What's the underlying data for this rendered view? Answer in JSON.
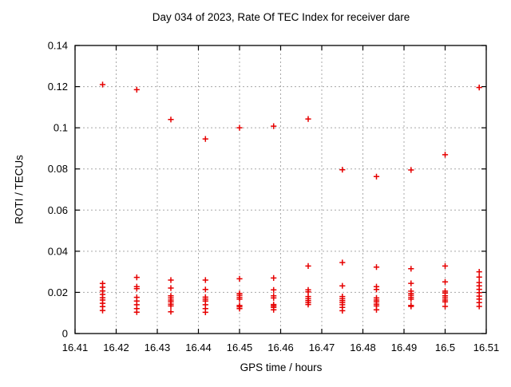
{
  "chart_data": {
    "type": "scatter",
    "title": "Day 034 of 2023, Rate Of TEC Index for receiver dare",
    "xlabel": "GPS time / hours",
    "ylabel": "ROTI / TECUs",
    "xlim": [
      16.41,
      16.51
    ],
    "ylim": [
      0,
      0.14
    ],
    "x_ticks": [
      "16.41",
      "16.42",
      "16.43",
      "16.44",
      "16.45",
      "16.46",
      "16.47",
      "16.48",
      "16.49",
      "16.5",
      "16.51"
    ],
    "y_ticks": [
      "0",
      "0.02",
      "0.04",
      "0.06",
      "0.08",
      "0.1",
      "0.12",
      "0.14"
    ],
    "grid": true,
    "legend": "none",
    "marker": "plus",
    "colors": {
      "marker": "#e60000",
      "grid": "#a8a8a8",
      "border": "#000000",
      "background": "#ffffff"
    },
    "series": [
      {
        "name": "ROTI",
        "points": [
          [
            16.4167,
            0.121
          ],
          [
            16.4167,
            0.0243
          ],
          [
            16.4167,
            0.0225
          ],
          [
            16.4167,
            0.0207
          ],
          [
            16.4167,
            0.019
          ],
          [
            16.4167,
            0.0174
          ],
          [
            16.4167,
            0.0163
          ],
          [
            16.4167,
            0.0147
          ],
          [
            16.4167,
            0.0131
          ],
          [
            16.4167,
            0.0112
          ],
          [
            16.425,
            0.1185
          ],
          [
            16.425,
            0.0273
          ],
          [
            16.425,
            0.0228
          ],
          [
            16.425,
            0.0218
          ],
          [
            16.425,
            0.0176
          ],
          [
            16.425,
            0.0158
          ],
          [
            16.425,
            0.014
          ],
          [
            16.425,
            0.0121
          ],
          [
            16.425,
            0.0104
          ],
          [
            16.4333,
            0.104
          ],
          [
            16.4333,
            0.026
          ],
          [
            16.4333,
            0.0221
          ],
          [
            16.4333,
            0.0183
          ],
          [
            16.4333,
            0.0173
          ],
          [
            16.4333,
            0.0163
          ],
          [
            16.4333,
            0.0154
          ],
          [
            16.4333,
            0.0143
          ],
          [
            16.4333,
            0.0134
          ],
          [
            16.4333,
            0.0106
          ],
          [
            16.4417,
            0.0946
          ],
          [
            16.4417,
            0.026
          ],
          [
            16.4417,
            0.0214
          ],
          [
            16.4417,
            0.0177
          ],
          [
            16.4417,
            0.0167
          ],
          [
            16.4417,
            0.0158
          ],
          [
            16.4417,
            0.014
          ],
          [
            16.4417,
            0.0121
          ],
          [
            16.4417,
            0.0103
          ],
          [
            16.45,
            0.1
          ],
          [
            16.45,
            0.0266
          ],
          [
            16.45,
            0.0195
          ],
          [
            16.45,
            0.0186
          ],
          [
            16.45,
            0.0176
          ],
          [
            16.45,
            0.0167
          ],
          [
            16.45,
            0.0137
          ],
          [
            16.45,
            0.013
          ],
          [
            16.45,
            0.0121
          ],
          [
            16.4583,
            0.1008
          ],
          [
            16.4583,
            0.027
          ],
          [
            16.4583,
            0.0212
          ],
          [
            16.4583,
            0.0183
          ],
          [
            16.4583,
            0.0173
          ],
          [
            16.4583,
            0.0141
          ],
          [
            16.4583,
            0.0134
          ],
          [
            16.4583,
            0.0127
          ],
          [
            16.4583,
            0.0115
          ],
          [
            16.4667,
            0.1043
          ],
          [
            16.4667,
            0.0328
          ],
          [
            16.4667,
            0.0212
          ],
          [
            16.4667,
            0.0203
          ],
          [
            16.4667,
            0.018
          ],
          [
            16.4667,
            0.0169
          ],
          [
            16.4667,
            0.016
          ],
          [
            16.4667,
            0.015
          ],
          [
            16.4667,
            0.0141
          ],
          [
            16.475,
            0.0796
          ],
          [
            16.475,
            0.0345
          ],
          [
            16.475,
            0.0232
          ],
          [
            16.475,
            0.018
          ],
          [
            16.475,
            0.0169
          ],
          [
            16.475,
            0.016
          ],
          [
            16.475,
            0.015
          ],
          [
            16.475,
            0.014
          ],
          [
            16.475,
            0.0127
          ],
          [
            16.475,
            0.0111
          ],
          [
            16.4833,
            0.0763
          ],
          [
            16.4833,
            0.0323
          ],
          [
            16.4833,
            0.0228
          ],
          [
            16.4833,
            0.0214
          ],
          [
            16.4833,
            0.0173
          ],
          [
            16.4833,
            0.0163
          ],
          [
            16.4833,
            0.0154
          ],
          [
            16.4833,
            0.0143
          ],
          [
            16.4833,
            0.0134
          ],
          [
            16.4833,
            0.0115
          ],
          [
            16.4917,
            0.0795
          ],
          [
            16.4917,
            0.0315
          ],
          [
            16.4917,
            0.0244
          ],
          [
            16.4917,
            0.0206
          ],
          [
            16.4917,
            0.0195
          ],
          [
            16.4917,
            0.0186
          ],
          [
            16.4917,
            0.0176
          ],
          [
            16.4917,
            0.0167
          ],
          [
            16.4917,
            0.0137
          ],
          [
            16.4917,
            0.0132
          ],
          [
            16.5,
            0.0869
          ],
          [
            16.5,
            0.0328
          ],
          [
            16.5,
            0.0251
          ],
          [
            16.5,
            0.0206
          ],
          [
            16.5,
            0.0197
          ],
          [
            16.5,
            0.0183
          ],
          [
            16.5,
            0.0173
          ],
          [
            16.5,
            0.0163
          ],
          [
            16.5,
            0.0154
          ],
          [
            16.5,
            0.0132
          ],
          [
            16.5083,
            0.1196
          ],
          [
            16.5083,
            0.03
          ],
          [
            16.5083,
            0.0274
          ],
          [
            16.5083,
            0.0248
          ],
          [
            16.5083,
            0.0232
          ],
          [
            16.5083,
            0.0215
          ],
          [
            16.5083,
            0.0199
          ],
          [
            16.5083,
            0.0182
          ],
          [
            16.5083,
            0.0167
          ],
          [
            16.5083,
            0.015
          ],
          [
            16.5083,
            0.0132
          ]
        ]
      }
    ]
  }
}
